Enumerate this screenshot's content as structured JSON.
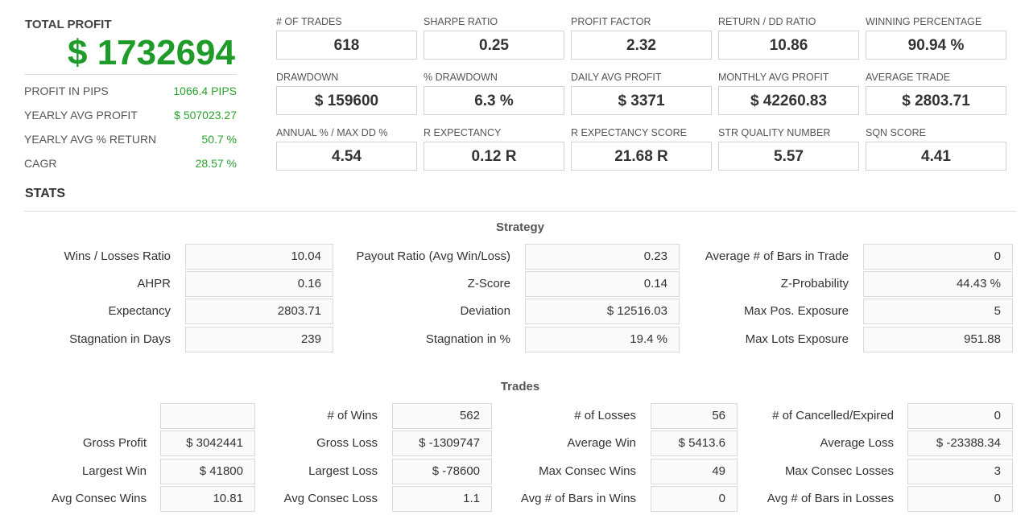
{
  "summary": {
    "total_profit_label": "TOTAL PROFIT",
    "total_profit_value": "$ 1732694",
    "rows": [
      {
        "label": "PROFIT IN PIPS",
        "value": "1066.4 PIPS"
      },
      {
        "label": "YEARLY AVG PROFIT",
        "value": "$ 507023.27"
      },
      {
        "label": "YEARLY AVG % RETURN",
        "value": "50.7 %"
      },
      {
        "label": "CAGR",
        "value": "28.57 %"
      }
    ]
  },
  "metrics": [
    {
      "label": "# OF TRADES",
      "value": "618"
    },
    {
      "label": "SHARPE RATIO",
      "value": "0.25"
    },
    {
      "label": "PROFIT FACTOR",
      "value": "2.32"
    },
    {
      "label": "RETURN / DD RATIO",
      "value": "10.86"
    },
    {
      "label": "WINNING PERCENTAGE",
      "value": "90.94 %"
    },
    {
      "label": "DRAWDOWN",
      "value": "$ 159600"
    },
    {
      "label": "% DRAWDOWN",
      "value": "6.3 %"
    },
    {
      "label": "DAILY AVG PROFIT",
      "value": "$ 3371"
    },
    {
      "label": "MONTHLY AVG PROFIT",
      "value": "$ 42260.83"
    },
    {
      "label": "AVERAGE TRADE",
      "value": "$ 2803.71"
    },
    {
      "label": "ANNUAL % / MAX DD %",
      "value": "4.54"
    },
    {
      "label": "R EXPECTANCY",
      "value": "0.12 R"
    },
    {
      "label": "R EXPECTANCY SCORE",
      "value": "21.68 R"
    },
    {
      "label": "STR QUALITY NUMBER",
      "value": "5.57"
    },
    {
      "label": "SQN SCORE",
      "value": "4.41"
    }
  ],
  "stats_title": "STATS",
  "strategy": {
    "title": "Strategy",
    "rows": [
      [
        {
          "label": "Wins / Losses Ratio",
          "value": "10.04"
        },
        {
          "label": "Payout Ratio (Avg Win/Loss)",
          "value": "0.23"
        },
        {
          "label": "Average # of Bars in Trade",
          "value": "0"
        }
      ],
      [
        {
          "label": "AHPR",
          "value": "0.16"
        },
        {
          "label": "Z-Score",
          "value": "0.14"
        },
        {
          "label": "Z-Probability",
          "value": "44.43 %"
        }
      ],
      [
        {
          "label": "Expectancy",
          "value": "2803.71"
        },
        {
          "label": "Deviation",
          "value": "$ 12516.03"
        },
        {
          "label": "Max Pos. Exposure",
          "value": "5"
        }
      ],
      [
        {
          "label": "Stagnation in Days",
          "value": "239"
        },
        {
          "label": "Stagnation in %",
          "value": "19.4 %"
        },
        {
          "label": "Max Lots Exposure",
          "value": "951.88"
        }
      ]
    ]
  },
  "trades": {
    "title": "Trades",
    "rows": [
      [
        {
          "label": "",
          "value": ""
        },
        {
          "label": "# of Wins",
          "value": "562"
        },
        {
          "label": "# of Losses",
          "value": "56"
        },
        {
          "label": "# of Cancelled/Expired",
          "value": "0"
        }
      ],
      [
        {
          "label": "Gross Profit",
          "value": "$ 3042441"
        },
        {
          "label": "Gross Loss",
          "value": "$ -1309747"
        },
        {
          "label": "Average Win",
          "value": "$ 5413.6"
        },
        {
          "label": "Average Loss",
          "value": "$ -23388.34"
        }
      ],
      [
        {
          "label": "Largest Win",
          "value": "$ 41800"
        },
        {
          "label": "Largest Loss",
          "value": "$ -78600"
        },
        {
          "label": "Max Consec Wins",
          "value": "49"
        },
        {
          "label": "Max Consec Losses",
          "value": "3"
        }
      ],
      [
        {
          "label": "Avg Consec Wins",
          "value": "10.81"
        },
        {
          "label": "Avg Consec Loss",
          "value": "1.1"
        },
        {
          "label": "Avg # of Bars in Wins",
          "value": "0"
        },
        {
          "label": "Avg # of Bars in Losses",
          "value": "0"
        }
      ]
    ]
  }
}
